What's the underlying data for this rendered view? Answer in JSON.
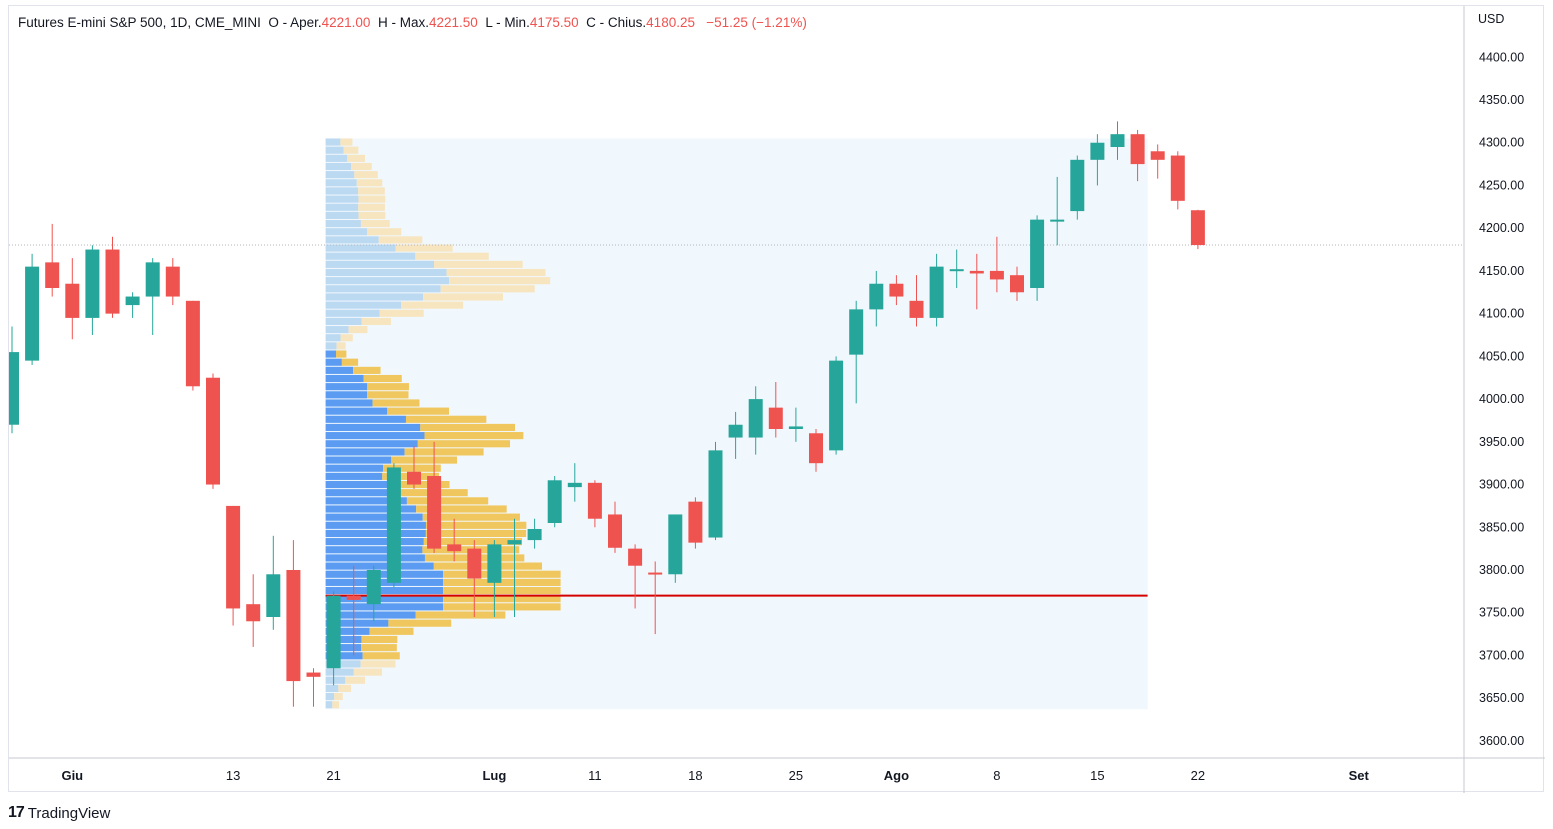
{
  "header": {
    "symbol": "Futures E-mini S&P 500, 1D, CME_MINI",
    "o_label": "O - Aper.",
    "open": "4221.00",
    "h_label": "H - Max.",
    "high": "4221.50",
    "l_label": "L - Min.",
    "low": "4175.50",
    "c_label": "C - Chius.",
    "close": "4180.25",
    "change": "−51.25 (−1.21%)"
  },
  "footer": {
    "brand": "TradingView",
    "logo": "17"
  },
  "colors": {
    "up": "#26a69a",
    "down": "#ef5350",
    "vp_up": "#5b9cf2",
    "vp_down": "#f0c75e",
    "vp_up_light": "#bcd9f2",
    "vp_down_light": "#f7e5c0",
    "poc": "#d50000",
    "vp_bg": "#e8f4fb"
  },
  "chart_data": {
    "type": "candlestick",
    "currency": "USD",
    "ylim": [
      3580,
      4460
    ],
    "y_ticks": [
      "3600.00",
      "3650.00",
      "3700.00",
      "3750.00",
      "3800.00",
      "3850.00",
      "3900.00",
      "3950.00",
      "4000.00",
      "4050.00",
      "4100.00",
      "4150.00",
      "4200.00",
      "4250.00",
      "4300.00",
      "4350.00",
      "4400.00"
    ],
    "x_ticks": [
      {
        "label": "Giu",
        "index": 3
      },
      {
        "label": "13",
        "index": 11
      },
      {
        "label": "21",
        "index": 16
      },
      {
        "label": "Lug",
        "index": 24
      },
      {
        "label": "11",
        "index": 29
      },
      {
        "label": "18",
        "index": 34
      },
      {
        "label": "25",
        "index": 39
      },
      {
        "label": "Ago",
        "index": 44
      },
      {
        "label": "8",
        "index": 49
      },
      {
        "label": "15",
        "index": 54
      },
      {
        "label": "22",
        "index": 59
      },
      {
        "label": "Set",
        "index": 67
      }
    ],
    "candles": [
      {
        "o": 3970,
        "h": 4085,
        "l": 3960,
        "c": 4055
      },
      {
        "o": 4045,
        "h": 4170,
        "l": 4040,
        "c": 4155
      },
      {
        "o": 4160,
        "h": 4205,
        "l": 4120,
        "c": 4130
      },
      {
        "o": 4135,
        "h": 4165,
        "l": 4070,
        "c": 4095
      },
      {
        "o": 4095,
        "h": 4180,
        "l": 4075,
        "c": 4175
      },
      {
        "o": 4175,
        "h": 4190,
        "l": 4095,
        "c": 4100
      },
      {
        "o": 4110,
        "h": 4125,
        "l": 4095,
        "c": 4120
      },
      {
        "o": 4120,
        "h": 4165,
        "l": 4075,
        "c": 4160
      },
      {
        "o": 4155,
        "h": 4165,
        "l": 4110,
        "c": 4120
      },
      {
        "o": 4115,
        "h": 4115,
        "l": 4010,
        "c": 4015
      },
      {
        "o": 4025,
        "h": 4030,
        "l": 3895,
        "c": 3900
      },
      {
        "o": 3875,
        "h": 3875,
        "l": 3735,
        "c": 3755
      },
      {
        "o": 3760,
        "h": 3795,
        "l": 3710,
        "c": 3740
      },
      {
        "o": 3745,
        "h": 3840,
        "l": 3730,
        "c": 3795
      },
      {
        "o": 3800,
        "h": 3835,
        "l": 3640,
        "c": 3670
      },
      {
        "o": 3680,
        "h": 3685,
        "l": 3640,
        "c": 3675
      },
      {
        "o": 3685,
        "h": 3775,
        "l": 3665,
        "c": 3770
      },
      {
        "o": 3770,
        "h": 3805,
        "l": 3700,
        "c": 3765
      },
      {
        "o": 3760,
        "h": 3805,
        "l": 3740,
        "c": 3800
      },
      {
        "o": 3785,
        "h": 3925,
        "l": 3780,
        "c": 3920
      },
      {
        "o": 3915,
        "h": 3945,
        "l": 3895,
        "c": 3900
      },
      {
        "o": 3910,
        "h": 3950,
        "l": 3820,
        "c": 3825
      },
      {
        "o": 3830,
        "h": 3860,
        "l": 3810,
        "c": 3822
      },
      {
        "o": 3825,
        "h": 3835,
        "l": 3745,
        "c": 3790
      },
      {
        "o": 3785,
        "h": 3835,
        "l": 3745,
        "c": 3830
      },
      {
        "o": 3830,
        "h": 3860,
        "l": 3745,
        "c": 3835
      },
      {
        "o": 3835,
        "h": 3860,
        "l": 3825,
        "c": 3848
      },
      {
        "o": 3855,
        "h": 3910,
        "l": 3850,
        "c": 3905
      },
      {
        "o": 3897,
        "h": 3925,
        "l": 3880,
        "c": 3902
      },
      {
        "o": 3902,
        "h": 3905,
        "l": 3850,
        "c": 3860
      },
      {
        "o": 3865,
        "h": 3880,
        "l": 3820,
        "c": 3826
      },
      {
        "o": 3825,
        "h": 3830,
        "l": 3755,
        "c": 3805
      },
      {
        "o": 3797,
        "h": 3810,
        "l": 3725,
        "c": 3795
      },
      {
        "o": 3795,
        "h": 3865,
        "l": 3785,
        "c": 3865
      },
      {
        "o": 3880,
        "h": 3885,
        "l": 3825,
        "c": 3832
      },
      {
        "o": 3838,
        "h": 3950,
        "l": 3835,
        "c": 3940
      },
      {
        "o": 3955,
        "h": 3985,
        "l": 3930,
        "c": 3970
      },
      {
        "o": 3955,
        "h": 4015,
        "l": 3935,
        "c": 4000
      },
      {
        "o": 3990,
        "h": 4020,
        "l": 3955,
        "c": 3965
      },
      {
        "o": 3965,
        "h": 3990,
        "l": 3950,
        "c": 3968
      },
      {
        "o": 3960,
        "h": 3965,
        "l": 3915,
        "c": 3925
      },
      {
        "o": 3940,
        "h": 4050,
        "l": 3935,
        "c": 4045
      },
      {
        "o": 4052,
        "h": 4115,
        "l": 3995,
        "c": 4105
      },
      {
        "o": 4105,
        "h": 4150,
        "l": 4085,
        "c": 4135
      },
      {
        "o": 4135,
        "h": 4145,
        "l": 4110,
        "c": 4120
      },
      {
        "o": 4115,
        "h": 4145,
        "l": 4085,
        "c": 4095
      },
      {
        "o": 4095,
        "h": 4170,
        "l": 4085,
        "c": 4155
      },
      {
        "o": 4150,
        "h": 4175,
        "l": 4130,
        "c": 4152
      },
      {
        "o": 4150,
        "h": 4170,
        "l": 4105,
        "c": 4147
      },
      {
        "o": 4150,
        "h": 4190,
        "l": 4125,
        "c": 4140
      },
      {
        "o": 4145,
        "h": 4155,
        "l": 4115,
        "c": 4125
      },
      {
        "o": 4130,
        "h": 4215,
        "l": 4115,
        "c": 4210
      },
      {
        "o": 4210,
        "h": 4260,
        "l": 4180,
        "c": 4210
      },
      {
        "o": 4220,
        "h": 4285,
        "l": 4210,
        "c": 4280
      },
      {
        "o": 4280,
        "h": 4310,
        "l": 4250,
        "c": 4300
      },
      {
        "o": 4295,
        "h": 4325,
        "l": 4280,
        "c": 4310
      },
      {
        "o": 4310,
        "h": 4315,
        "l": 4255,
        "c": 4275
      },
      {
        "o": 4290,
        "h": 4298,
        "l": 4258,
        "c": 4280
      },
      {
        "o": 4285,
        "h": 4290,
        "l": 4222,
        "c": 4232
      },
      {
        "o": 4221,
        "h": 4221.5,
        "l": 4175.5,
        "c": 4180.25
      }
    ],
    "current_price": 4180.25,
    "volume_profile": {
      "range": [
        3637,
        4305
      ],
      "poc_price": 3770,
      "start_index": 16,
      "end_index": 56
    }
  }
}
